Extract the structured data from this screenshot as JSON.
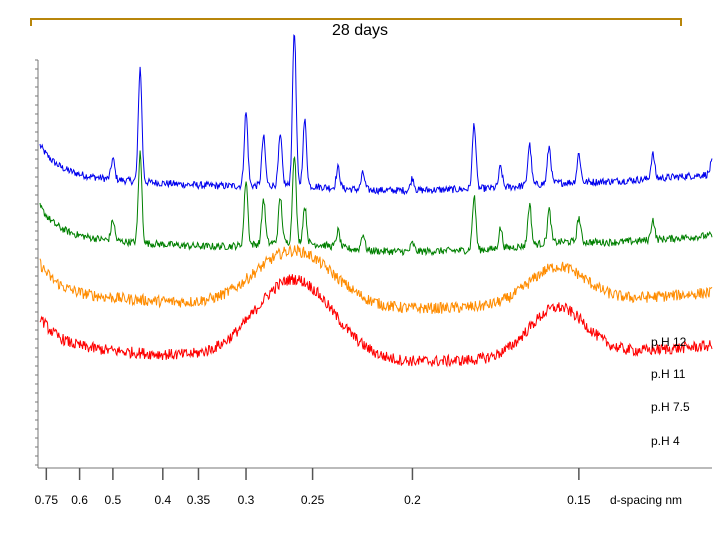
{
  "chart_data": {
    "type": "line",
    "title": "28 days",
    "xlabel": "d-spacing nm",
    "ylabel": "",
    "x_ticks": [
      "0.75",
      "0.6",
      "0.5",
      "0.4",
      "0.35",
      "0.3",
      "0.25",
      "0.2",
      "0.15"
    ],
    "x_tick_values": [
      0.75,
      0.6,
      0.5,
      0.4,
      0.35,
      0.3,
      0.25,
      0.2,
      0.15
    ],
    "series": [
      {
        "name": "pH 12",
        "label": "p.H  12",
        "color": "#0000ee",
        "baseline": 0.72,
        "broad_humps": [
          [
            0.262,
            0.01
          ],
          [
            0.155,
            0.005
          ]
        ],
        "peaks": [
          [
            0.44,
            0.28
          ],
          [
            0.5,
            0.05
          ],
          [
            0.3,
            0.18
          ],
          [
            0.285,
            0.12
          ],
          [
            0.272,
            0.12
          ],
          [
            0.262,
            0.38
          ],
          [
            0.255,
            0.16
          ],
          [
            0.235,
            0.05
          ],
          [
            0.222,
            0.04
          ],
          [
            0.2,
            0.03
          ],
          [
            0.178,
            0.16
          ],
          [
            0.17,
            0.05
          ],
          [
            0.162,
            0.1
          ],
          [
            0.157,
            0.09
          ],
          [
            0.15,
            0.07
          ],
          [
            0.135,
            0.06
          ],
          [
            0.125,
            0.03
          ]
        ]
      },
      {
        "name": "pH 11",
        "label": "p.H  11",
        "color": "#008000",
        "baseline": 0.57,
        "broad_humps": [
          [
            0.262,
            0.02
          ],
          [
            0.155,
            0.01
          ]
        ],
        "peaks": [
          [
            0.44,
            0.22
          ],
          [
            0.5,
            0.05
          ],
          [
            0.3,
            0.16
          ],
          [
            0.285,
            0.11
          ],
          [
            0.272,
            0.11
          ],
          [
            0.262,
            0.22
          ],
          [
            0.255,
            0.09
          ],
          [
            0.235,
            0.04
          ],
          [
            0.222,
            0.04
          ],
          [
            0.2,
            0.02
          ],
          [
            0.178,
            0.13
          ],
          [
            0.17,
            0.05
          ],
          [
            0.162,
            0.1
          ],
          [
            0.157,
            0.08
          ],
          [
            0.15,
            0.06
          ],
          [
            0.135,
            0.05
          ]
        ]
      },
      {
        "name": "pH 7.5",
        "label": "p.H 7.5",
        "color": "#ff8c00",
        "baseline": 0.43,
        "broad_humps": [
          [
            0.262,
            0.14
          ],
          [
            0.155,
            0.09
          ]
        ],
        "peaks": []
      },
      {
        "name": "pH 4",
        "label": "p.H   4",
        "color": "#ff0000",
        "baseline": 0.3,
        "broad_humps": [
          [
            0.262,
            0.2
          ],
          [
            0.155,
            0.12
          ]
        ],
        "peaks": []
      }
    ]
  }
}
